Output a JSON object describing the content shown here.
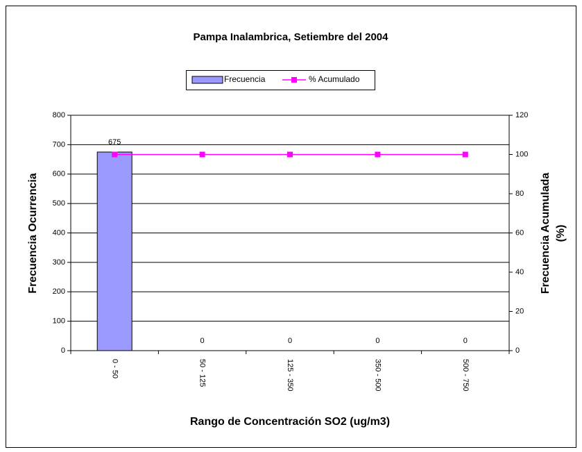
{
  "chart_data": {
    "type": "bar",
    "title": "Pampa Inalambrica, Setiembre del 2004",
    "x_label": "Rango de Concentración SO2 (ug/m3)",
    "y_label": "Frecuencia Ocurrencia",
    "y2_label": [
      "Frecuencia Acumulada",
      "(%)"
    ],
    "categories": [
      "0 - 50",
      "50 - 125",
      "125 - 350",
      "350 - 500",
      "500 - 750"
    ],
    "series": [
      {
        "name": "Frecuencia",
        "type": "bar",
        "color": "#9999ff",
        "values": [
          675,
          0,
          0,
          0,
          0
        ]
      },
      {
        "name": "% Acumulado",
        "type": "line",
        "axis": "y2",
        "color": "#ff00ff",
        "values": [
          100,
          100,
          100,
          100,
          100
        ]
      }
    ],
    "ylim": [
      0,
      800
    ],
    "yticks": [
      0,
      100,
      200,
      300,
      400,
      500,
      600,
      700,
      800
    ],
    "y2lim": [
      0,
      120
    ],
    "y2ticks": [
      0,
      20,
      40,
      60,
      80,
      100,
      120
    ],
    "grid": true,
    "legend": "top"
  }
}
